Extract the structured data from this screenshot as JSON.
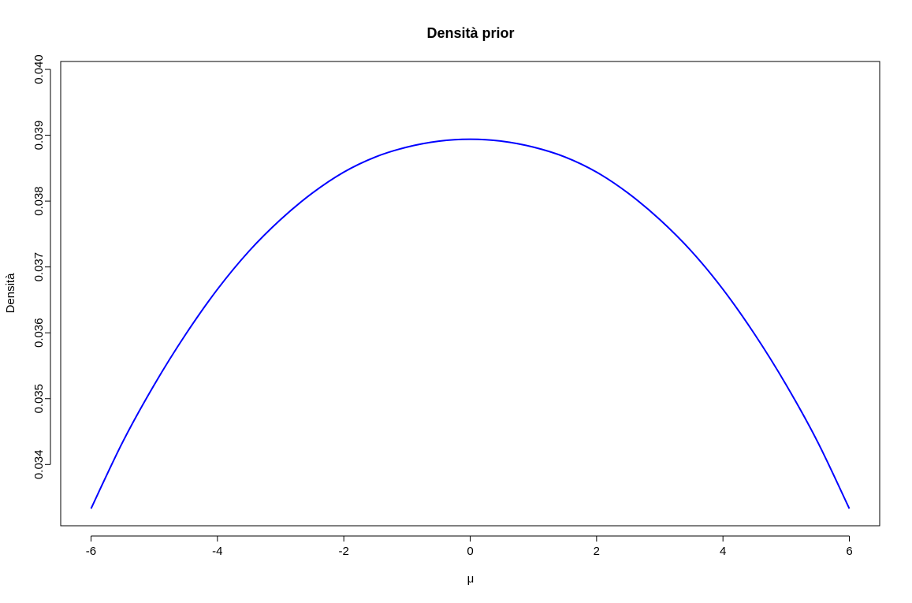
{
  "chart_data": {
    "type": "line",
    "title": "Densità prior",
    "xlabel": "μ",
    "ylabel": "Densità",
    "xlim": [
      -6.48,
      6.48
    ],
    "ylim": [
      0.03307,
      0.04012
    ],
    "x_ticks": [
      -6,
      -4,
      -2,
      0,
      2,
      4,
      6
    ],
    "x_tick_labels": [
      "-6",
      "-4",
      "-2",
      "0",
      "2",
      "4",
      "6"
    ],
    "y_ticks": [
      0.034,
      0.035,
      0.036,
      0.037,
      0.038,
      0.039,
      0.04
    ],
    "y_tick_labels": [
      "0.034",
      "0.035",
      "0.036",
      "0.037",
      "0.038",
      "0.039",
      "0.040"
    ],
    "grid": false,
    "legend": "none",
    "series": [
      {
        "color": "#0000FF",
        "x": [
          -6,
          -5.5,
          -5,
          -4.5,
          -4,
          -3.5,
          -3,
          -2.5,
          -2,
          -1.5,
          -1,
          -0.5,
          0,
          0.5,
          1,
          1.5,
          2,
          2.5,
          3,
          3.5,
          4,
          4.5,
          5,
          5.5,
          6
        ],
        "y": [
          0.03333,
          0.03434,
          0.03521,
          0.03598,
          0.03666,
          0.03724,
          0.03772,
          0.03812,
          0.03844,
          0.03867,
          0.03882,
          0.03891,
          0.03894,
          0.03891,
          0.03882,
          0.03867,
          0.03844,
          0.03812,
          0.03772,
          0.03724,
          0.03666,
          0.03598,
          0.03521,
          0.03434,
          0.03333
        ]
      }
    ]
  }
}
